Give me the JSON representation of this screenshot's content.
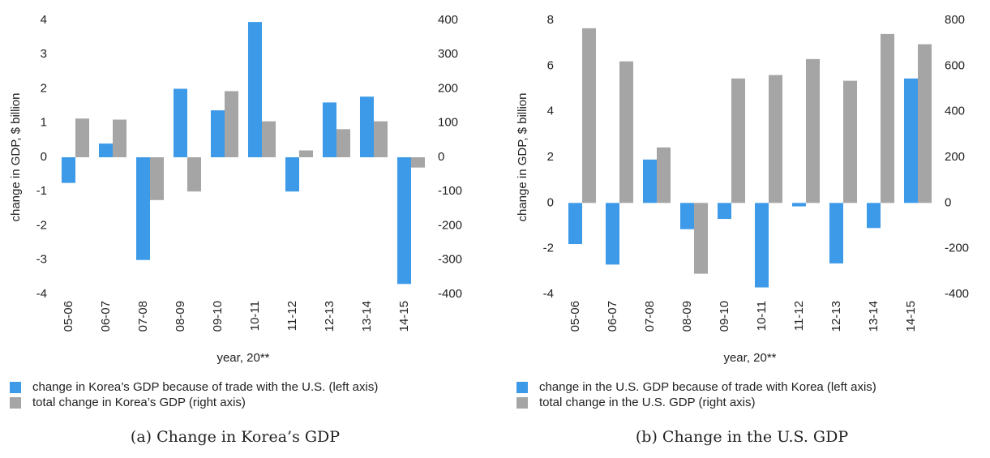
{
  "chart_data": [
    {
      "type": "bar",
      "caption": "(a) Change in Korea’s GDP",
      "y_label": "change in GDP, $ billion",
      "x_label": "year, 20**",
      "categories": [
        "05-06",
        "06-07",
        "07-08",
        "08-09",
        "09-10",
        "10-11",
        "11-12",
        "12-13",
        "13-14",
        "14-15"
      ],
      "series": [
        {
          "name": "change in Korea’s GDP because of trade with the U.S. (left axis)",
          "color": "#3d9ae8",
          "axis": "y",
          "values": [
            -0.75,
            0.4,
            -3.0,
            2.0,
            1.37,
            3.95,
            -1.0,
            1.6,
            1.77,
            -3.7
          ]
        },
        {
          "name": "total change in Korea’s GDP (right axis)",
          "color": "#a5a5a5",
          "axis": "y2",
          "values": [
            113,
            110,
            -125,
            -100,
            193,
            105,
            20,
            82,
            105,
            -30
          ]
        }
      ],
      "ylim": [
        -4,
        4
      ],
      "yticks": [
        -4,
        -3,
        -2,
        -1,
        0,
        1,
        2,
        3,
        4
      ],
      "y2lim": [
        -400,
        400
      ],
      "y2ticks": [
        -400,
        -300,
        -200,
        -100,
        0,
        100,
        200,
        300,
        400
      ]
    },
    {
      "type": "bar",
      "caption": "(b) Change in the U.S. GDP",
      "y_label": "change in GDP, $ billion",
      "x_label": "year, 20**",
      "categories": [
        "05-06",
        "06-07",
        "07-08",
        "08-09",
        "09-10",
        "10-11",
        "11-12",
        "12-13",
        "13-14",
        "14-15"
      ],
      "series": [
        {
          "name": "change in the U.S. GDP because of trade with Korea (left axis)",
          "color": "#3d9ae8",
          "axis": "y",
          "values": [
            -1.8,
            -2.7,
            1.9,
            -1.15,
            -0.7,
            -3.7,
            -0.15,
            -2.65,
            -1.1,
            5.45
          ]
        },
        {
          "name": "total change in the U.S. GDP (right axis)",
          "color": "#a5a5a5",
          "axis": "y2",
          "values": [
            765,
            620,
            243,
            -310,
            545,
            560,
            630,
            535,
            740,
            695
          ]
        }
      ],
      "ylim": [
        -4,
        8
      ],
      "yticks": [
        -4,
        -2,
        0,
        2,
        4,
        6,
        8
      ],
      "y2lim": [
        -400,
        800
      ],
      "y2ticks": [
        -400,
        -200,
        0,
        200,
        400,
        600,
        800
      ]
    }
  ]
}
